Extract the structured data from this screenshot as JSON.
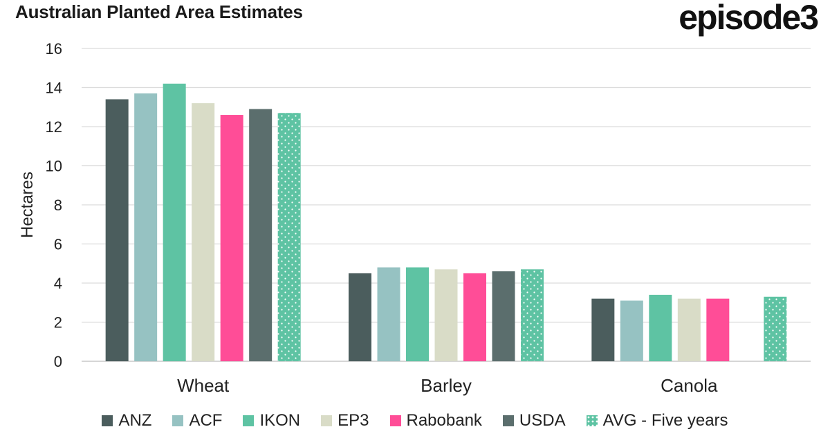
{
  "header": {
    "title": "Australian Planted Area Estimates",
    "brand": "episode3"
  },
  "chart_data": {
    "type": "bar",
    "title": "Australian Planted Area Estimates",
    "xlabel": "",
    "ylabel": "Hectares",
    "ylim": [
      0,
      16
    ],
    "yticks": [
      0,
      2,
      4,
      6,
      8,
      10,
      12,
      14,
      16
    ],
    "categories": [
      "Wheat",
      "Barley",
      "Canola"
    ],
    "grid": true,
    "legend_position": "bottom",
    "series": [
      {
        "name": "ANZ",
        "color": "#4b5d5d",
        "pattern": "solid",
        "values": [
          13.4,
          4.5,
          3.2
        ]
      },
      {
        "name": "ACF",
        "color": "#96c2c2",
        "pattern": "solid",
        "values": [
          13.7,
          4.8,
          3.1
        ]
      },
      {
        "name": "IKON",
        "color": "#5ec3a3",
        "pattern": "solid",
        "values": [
          14.2,
          4.8,
          3.4
        ]
      },
      {
        "name": "EP3",
        "color": "#d9dcc7",
        "pattern": "solid",
        "values": [
          13.2,
          4.7,
          3.2
        ]
      },
      {
        "name": "Rabobank",
        "color": "#ff4d97",
        "pattern": "solid",
        "values": [
          12.6,
          4.5,
          3.2
        ]
      },
      {
        "name": "USDA",
        "color": "#5b6e6d",
        "pattern": "solid",
        "values": [
          12.9,
          4.6,
          null
        ]
      },
      {
        "name": "AVG - Five years",
        "color": "#5ec3a3",
        "pattern": "dotted",
        "values": [
          12.7,
          4.7,
          3.3
        ]
      }
    ]
  }
}
